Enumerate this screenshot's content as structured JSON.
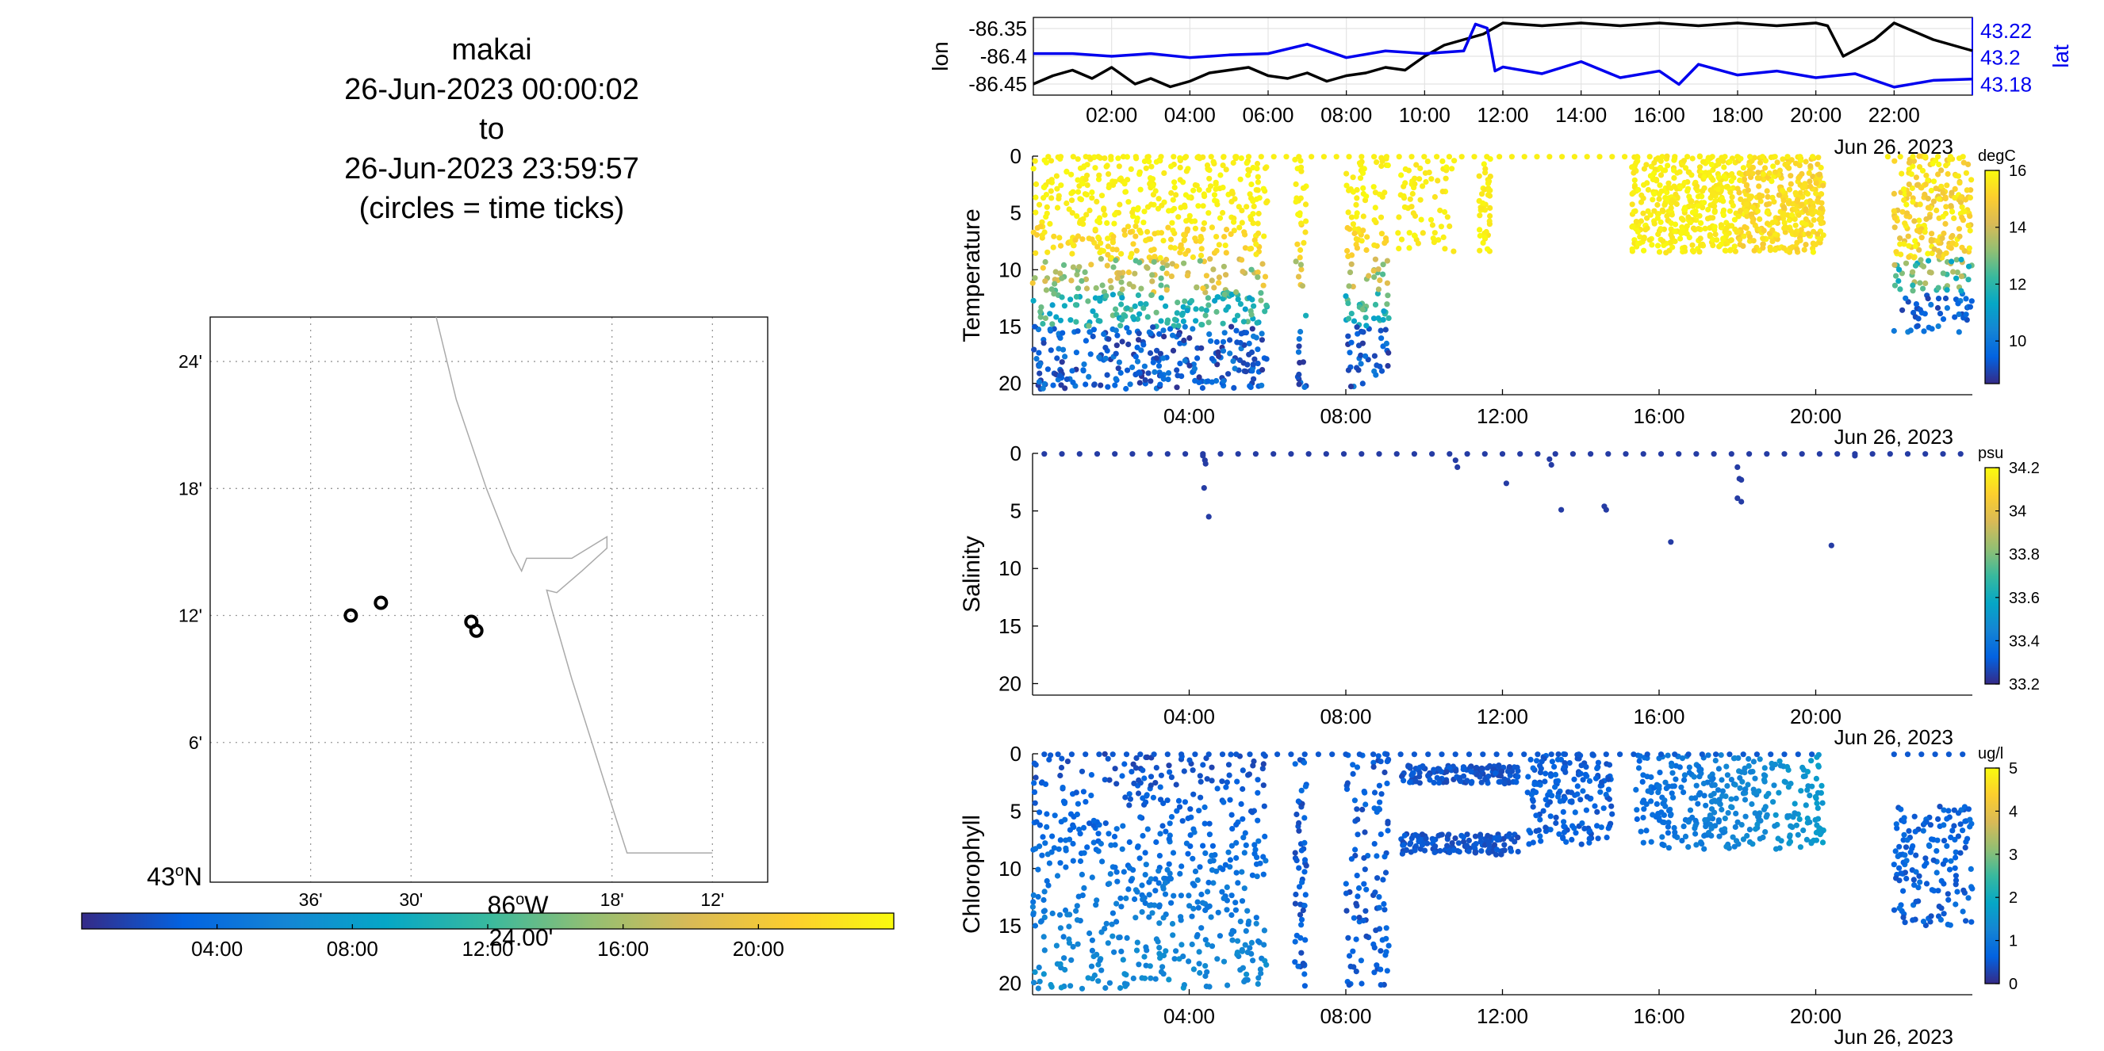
{
  "title_lines": [
    "makai",
    "26-Jun-2023 00:00:02",
    "to",
    "26-Jun-2023 23:59:57",
    "(circles = time ticks)"
  ],
  "colors": {
    "parula": [
      "#352a87",
      "#0363e1",
      "#1485d4",
      "#06a7c6",
      "#38b99e",
      "#92bf73",
      "#d9ba56",
      "#fcce2e",
      "#f9fb0e"
    ],
    "lon_line": "#000000",
    "lat_line": "#0000ee",
    "coastline": "#aaaaaa",
    "grid": "#999999"
  },
  "chart_data": [
    {
      "type": "map",
      "lon_ticks": [
        -86.6,
        -86.5,
        -86.3,
        -86.2
      ],
      "lon_tick_labels": [
        "36'",
        "30'",
        "18'",
        "12'"
      ],
      "lon_tick_extra": {
        "value": -86.4,
        "label": "24.00'"
      },
      "lon_degree_label": "86",
      "lon_degree_suffix": "W",
      "lat_ticks": [
        43.4,
        43.3,
        43.2,
        43.1
      ],
      "lat_tick_labels": [
        "24'",
        "18'",
        "12'",
        "6'"
      ],
      "lat_degree_label": "43",
      "lat_degree_suffix": "N",
      "xlim": [
        -86.7,
        -86.145
      ],
      "ylim": [
        42.99,
        43.435
      ],
      "coastline": [
        [
          -86.475,
          43.435
        ],
        [
          -86.455,
          43.37
        ],
        [
          -86.425,
          43.3
        ],
        [
          -86.4,
          43.25
        ],
        [
          -86.39,
          43.235
        ],
        [
          -86.385,
          43.245
        ],
        [
          -86.34,
          43.245
        ],
        [
          -86.305,
          43.262
        ],
        [
          -86.305,
          43.253
        ],
        [
          -86.33,
          43.235
        ],
        [
          -86.355,
          43.218
        ],
        [
          -86.365,
          43.22
        ],
        [
          -86.36,
          43.205
        ],
        [
          -86.34,
          43.15
        ],
        [
          -86.32,
          43.1
        ],
        [
          -86.3,
          43.05
        ],
        [
          -86.285,
          43.013
        ],
        [
          -86.2,
          43.013
        ]
      ],
      "time_ticks": [
        [
          -86.56,
          43.2
        ],
        [
          -86.53,
          43.21
        ],
        [
          -86.44,
          43.195
        ],
        [
          -86.435,
          43.188
        ]
      ],
      "colorbar_ticks": [
        "04:00",
        "08:00",
        "12:00",
        "16:00",
        "20:00"
      ]
    },
    {
      "type": "line",
      "left_ylabel": "lon",
      "right_ylabel": "lat",
      "left_ticks": [
        -86.35,
        -86.4,
        -86.45
      ],
      "left_tick_labels": [
        "-86.35",
        "-86.4",
        "-86.45"
      ],
      "right_ticks": [
        43.22,
        43.2,
        43.18
      ],
      "right_tick_labels": [
        "43.22",
        "43.2",
        "43.18"
      ],
      "left_ylim": [
        -86.47,
        -86.33
      ],
      "right_ylim": [
        43.172,
        43.23
      ],
      "xlim": [
        0,
        24
      ],
      "x_ticks": [
        "02:00",
        "04:00",
        "06:00",
        "08:00",
        "10:00",
        "12:00",
        "14:00",
        "16:00",
        "18:00",
        "20:00",
        "22:00"
      ],
      "date_label": "Jun 26, 2023",
      "series": [
        {
          "name": "lon",
          "axis": "left",
          "x": [
            0,
            0.5,
            1,
            1.5,
            2,
            2.6,
            3,
            3.5,
            4,
            4.5,
            5,
            5.5,
            6,
            6.5,
            7,
            7.5,
            8,
            8.5,
            9,
            9.5,
            10,
            10.5,
            11,
            11.5,
            12,
            13,
            14,
            15,
            16,
            17,
            18,
            19,
            20,
            20.3,
            20.7,
            21.5,
            22,
            23,
            24
          ],
          "y": [
            -86.45,
            -86.435,
            -86.425,
            -86.44,
            -86.42,
            -86.45,
            -86.44,
            -86.455,
            -86.445,
            -86.43,
            -86.425,
            -86.42,
            -86.435,
            -86.44,
            -86.43,
            -86.445,
            -86.435,
            -86.43,
            -86.42,
            -86.425,
            -86.4,
            -86.38,
            -86.37,
            -86.36,
            -86.34,
            -86.345,
            -86.34,
            -86.345,
            -86.34,
            -86.345,
            -86.34,
            -86.345,
            -86.34,
            -86.345,
            -86.4,
            -86.37,
            -86.34,
            -86.37,
            -86.39
          ]
        },
        {
          "name": "lat",
          "axis": "right",
          "x": [
            0,
            1,
            2,
            3,
            4,
            5,
            6,
            7,
            8,
            9,
            10,
            11,
            11.3,
            11.6,
            11.8,
            12,
            13,
            14,
            15,
            16,
            16.5,
            17,
            18,
            19,
            20,
            21,
            22,
            23,
            24
          ],
          "y": [
            43.203,
            43.203,
            43.201,
            43.203,
            43.2,
            43.202,
            43.203,
            43.21,
            43.2,
            43.205,
            43.203,
            43.205,
            43.225,
            43.222,
            43.19,
            43.193,
            43.188,
            43.197,
            43.185,
            43.19,
            43.18,
            43.195,
            43.187,
            43.19,
            43.185,
            43.188,
            43.178,
            43.183,
            43.184
          ]
        }
      ]
    },
    {
      "type": "scatter",
      "ylabel": "Temperature",
      "units": "degC",
      "xlim": [
        0,
        24
      ],
      "ylim": [
        0,
        21
      ],
      "x_ticks": [
        "04:00",
        "08:00",
        "12:00",
        "16:00",
        "20:00"
      ],
      "y_ticks": [
        0,
        5,
        10,
        15,
        20
      ],
      "date_label": "Jun 26, 2023",
      "colorbar": {
        "ticks": [
          16,
          14,
          12,
          10
        ],
        "min": 8.5,
        "max": 16
      }
    },
    {
      "type": "scatter",
      "ylabel": "Salinity",
      "units": "psu",
      "xlim": [
        0,
        24
      ],
      "ylim": [
        0,
        21
      ],
      "x_ticks": [
        "04:00",
        "08:00",
        "12:00",
        "16:00",
        "20:00"
      ],
      "y_ticks": [
        0,
        5,
        10,
        15,
        20
      ],
      "date_label": "Jun 26, 2023",
      "colorbar": {
        "ticks": [
          34.2,
          34,
          33.8,
          33.6,
          33.4,
          33.2
        ],
        "min": 33.2,
        "max": 34.2
      }
    },
    {
      "type": "scatter",
      "ylabel": "Chlorophyll",
      "units": "ug/l",
      "xlim": [
        0,
        24
      ],
      "ylim": [
        0,
        21
      ],
      "x_ticks": [
        "04:00",
        "08:00",
        "12:00",
        "16:00",
        "20:00"
      ],
      "y_ticks": [
        0,
        5,
        10,
        15,
        20
      ],
      "date_label": "Jun 26, 2023",
      "colorbar": {
        "ticks": [
          5,
          4,
          3,
          2,
          1,
          0
        ],
        "min": 0,
        "max": 5
      }
    }
  ]
}
